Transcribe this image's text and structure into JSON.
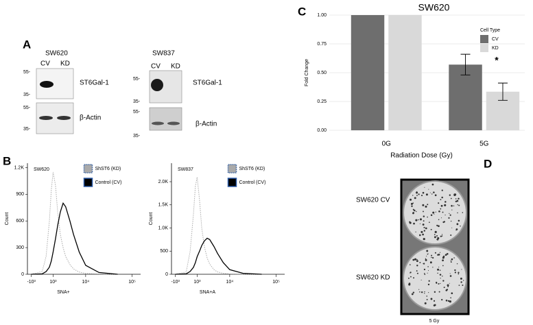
{
  "panels": {
    "A": {
      "label": "A",
      "blots": [
        {
          "cell_line": "SW620",
          "lanes": [
            "CV",
            "KD"
          ],
          "rows": [
            {
              "protein": "ST6Gal-1",
              "markers": [
                "55-",
                "35-"
              ]
            },
            {
              "protein": "β-Actin",
              "markers": [
                "55-",
                "35-"
              ]
            }
          ]
        },
        {
          "cell_line": "SW837",
          "lanes": [
            "CV",
            "KD"
          ],
          "rows": [
            {
              "protein": "ST6Gal-1",
              "markers": [
                "55-",
                "35-"
              ]
            },
            {
              "protein": "β-Actin",
              "markers": [
                "55-",
                "35-"
              ]
            }
          ]
        }
      ]
    },
    "B": {
      "label": "B"
    },
    "C": {
      "label": "C"
    },
    "D": {
      "label": "D",
      "rows": [
        "SW620 CV",
        "SW620 KD"
      ],
      "caption": "5 Gy"
    }
  },
  "chart_data": [
    {
      "type": "line",
      "annotation": "SW620",
      "xlabel": "SNA+",
      "ylabel": "Count",
      "xscale": "biexponential",
      "x": [
        -1000,
        0,
        300,
        600,
        800,
        1000,
        1300,
        1600,
        2000,
        2500,
        3000,
        4000,
        5000,
        7000,
        10000,
        20000,
        50000
      ],
      "xlim": [
        -1500,
        150000
      ],
      "xticks": [
        {
          "value": -1000,
          "label": "-10³"
        },
        {
          "value": 1000,
          "label": "10³"
        },
        {
          "value": 10000,
          "label": "10⁴"
        },
        {
          "value": 100000,
          "label": "10⁵"
        }
      ],
      "ylim": [
        0,
        1250
      ],
      "yticks": [
        0,
        300,
        600,
        900,
        {
          "value": 1200,
          "label": "1.2K"
        }
      ],
      "series": [
        {
          "name": "ShST6 (KD)",
          "color": "#aaaaaa",
          "style": "dotted",
          "values": [
            0,
            30,
            200,
            600,
            950,
            1150,
            1000,
            700,
            450,
            300,
            200,
            110,
            60,
            25,
            10,
            3,
            0
          ]
        },
        {
          "name": "Control (CV)",
          "color": "#000000",
          "style": "solid",
          "values": [
            0,
            5,
            30,
            80,
            150,
            250,
            400,
            550,
            700,
            800,
            760,
            600,
            450,
            250,
            100,
            20,
            0
          ]
        }
      ]
    },
    {
      "type": "line",
      "annotation": "SW837",
      "xlabel": "SNA+A",
      "ylabel": "Count",
      "xscale": "biexponential",
      "x": [
        -1000,
        0,
        300,
        600,
        800,
        1000,
        1300,
        1600,
        2000,
        2500,
        3000,
        4000,
        5000,
        7000,
        10000,
        20000,
        50000
      ],
      "xlim": [
        -1500,
        150000
      ],
      "xticks": [
        {
          "value": -1000,
          "label": "-10³"
        },
        {
          "value": 1000,
          "label": "10³"
        },
        {
          "value": 10000,
          "label": "10⁴"
        },
        {
          "value": 100000,
          "label": "10⁵"
        }
      ],
      "ylim": [
        0,
        2400
      ],
      "yticks": [
        0,
        500,
        {
          "value": 1000,
          "label": "1.0K"
        },
        {
          "value": 1500,
          "label": "1.5K"
        },
        {
          "value": 2000,
          "label": "2.0K"
        }
      ],
      "series": [
        {
          "name": "ShST6 (KD)",
          "color": "#aaaaaa",
          "style": "dotted",
          "values": [
            0,
            50,
            500,
            1300,
            1900,
            2100,
            1600,
            1000,
            600,
            350,
            220,
            100,
            50,
            20,
            8,
            2,
            0
          ]
        },
        {
          "name": "Control (CV)",
          "color": "#000000",
          "style": "solid",
          "values": [
            0,
            10,
            60,
            150,
            250,
            380,
            500,
            620,
            720,
            780,
            750,
            600,
            450,
            250,
            100,
            20,
            0
          ]
        }
      ]
    },
    {
      "type": "bar",
      "title": "SW620",
      "xlabel": "Radiation Dose (Gy)",
      "ylabel": "Fold Change",
      "categories": [
        "0G",
        "5G"
      ],
      "ylim": [
        0,
        1
      ],
      "yticks": [
        {
          "value": 0,
          "label": "0.00"
        },
        {
          "value": 0.25,
          "label": "0.25"
        },
        {
          "value": 0.5,
          "label": "0.50"
        },
        {
          "value": 0.75,
          "label": "0.75"
        },
        {
          "value": 1,
          "label": "1.00"
        }
      ],
      "grid": true,
      "legend_title": "Cell Type",
      "legend_position": "upper right",
      "annotation": "*",
      "series": [
        {
          "name": "CV",
          "color": "#6e6e6e",
          "values": [
            1,
            0.57
          ],
          "errors": [
            null,
            0.09
          ]
        },
        {
          "name": "KD",
          "color": "#d9d9d9",
          "values": [
            1,
            0.335
          ],
          "errors": [
            null,
            0.075
          ]
        }
      ]
    }
  ]
}
